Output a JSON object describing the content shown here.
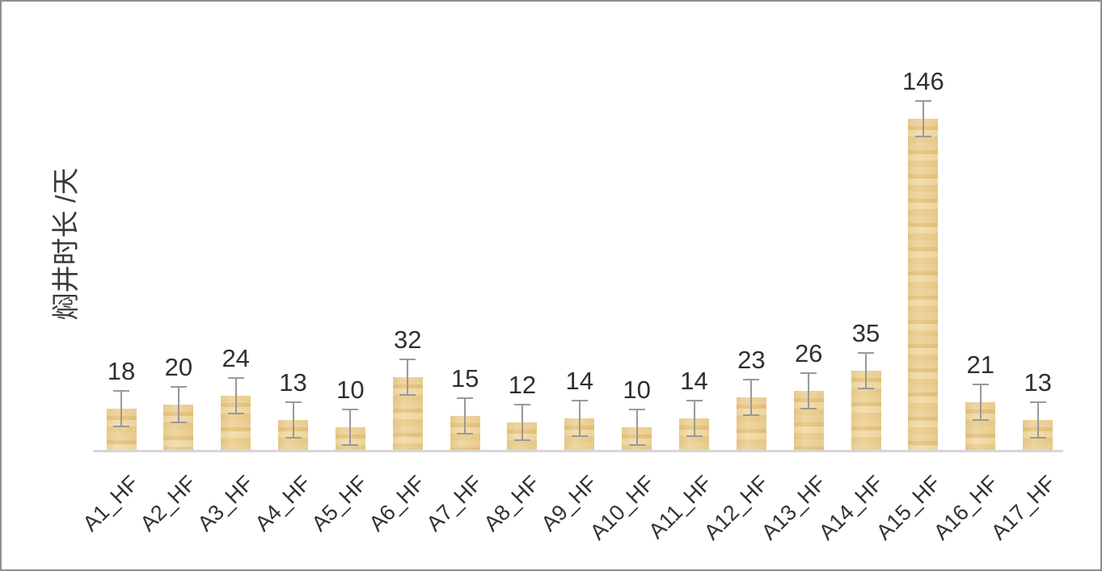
{
  "chart_data": {
    "type": "bar",
    "title": "",
    "ylabel": "焖井时长 /天",
    "xlabel": "",
    "categories": [
      "A1_HF",
      "A2_HF",
      "A3_HF",
      "A4_HF",
      "A5_HF",
      "A6_HF",
      "A7_HF",
      "A8_HF",
      "A9_HF",
      "A10_HF",
      "A11_HF",
      "A12_HF",
      "A13_HF",
      "A14_HF",
      "A15_HF",
      "A16_HF",
      "A17_HF"
    ],
    "values": [
      18,
      20,
      24,
      13,
      10,
      32,
      15,
      12,
      14,
      10,
      14,
      23,
      26,
      35,
      146,
      21,
      13
    ],
    "error_bars": {
      "type": "symmetric",
      "value_days": 8
    },
    "data_labels_shown": true,
    "ylim": [
      0,
      146
    ],
    "grid": false,
    "legend": "none",
    "colors": {
      "bar_fill": "#eace90",
      "bar_band_light": "#f0d9a5",
      "bar_band_dark": "#e5c27c",
      "error_bar": "#999999",
      "axis_line": "#d6d6d6",
      "text": "#303030"
    }
  }
}
